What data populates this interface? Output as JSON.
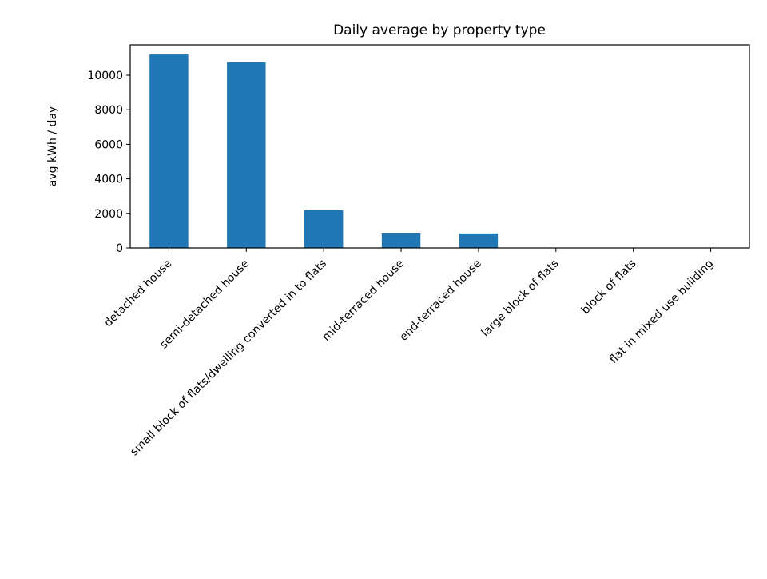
{
  "chart_data": {
    "type": "bar",
    "title": "Daily average by property type",
    "xlabel": "",
    "ylabel": "avg kWh / day",
    "categories": [
      "detached house",
      "semi-detached house",
      "small block of flats/dwelling converted in to flats",
      "mid-terraced house",
      "end-terraced house",
      "large block of flats",
      "block of flats",
      "flat in mixed use building"
    ],
    "values": [
      11200,
      10750,
      2180,
      880,
      840,
      0,
      0,
      0
    ],
    "ylim": [
      0,
      11760
    ],
    "yticks": [
      0,
      2000,
      4000,
      6000,
      8000,
      10000
    ],
    "bar_color": "#1f77b4",
    "grid": false,
    "legend": "none"
  }
}
